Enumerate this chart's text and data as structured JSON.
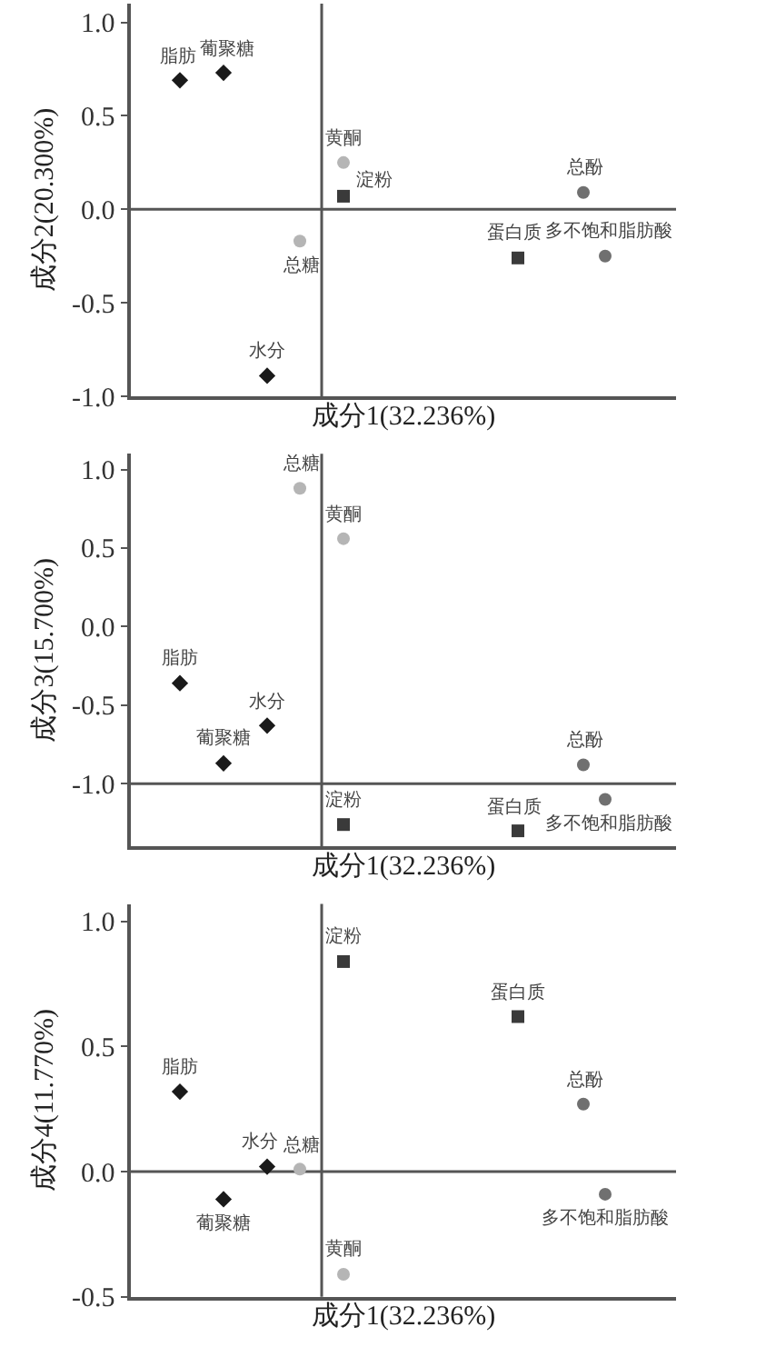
{
  "chart_data": [
    {
      "type": "scatter",
      "xlabel": "成分1(32.236%)",
      "ylabel": "成分2(20.300%)",
      "tick_labels": "y",
      "categories": [
        null,
        null,
        null,
        null,
        null,
        null,
        null,
        null,
        null,
        null,
        null,
        null,
        null,
        null,
        null,
        null,
        null,
        null,
        null,
        null,
        null,
        null,
        null,
        null,
        null,
        null,
        null,
        null,
        null,
        null,
        null,
        null,
        null,
        null,
        null,
        null,
        null,
        null,
        null,
        null,
        null,
        null,
        null,
        null,
        null,
        null,
        null,
        null,
        null,
        null
      ],
      "ylim": [
        -1.0,
        1.1
      ],
      "yticks": [
        {
          "value": 1,
          "label": "1.0"
        },
        {
          "value": 0.5,
          "label": "0.5"
        },
        {
          "value": 0,
          "label": "0.0"
        },
        {
          "value": -0.5,
          "label": "-0.5"
        },
        {
          "value": -1,
          "label": "-1.0"
        }
      ],
      "ref_lines": [
        {
          "axis": "y",
          "value": 0,
          "color": "#555555"
        }
      ],
      "series": [
        {
          "name": "脂肪",
          "color": "#1a1a1a",
          "marker": "diamond",
          "values": [
            null,
            null,
            null,
            null,
            0.69,
            null,
            null,
            null,
            null,
            null,
            null,
            null,
            null,
            null,
            null,
            null,
            null,
            null,
            null,
            null,
            null,
            null,
            null,
            null,
            null,
            null,
            null,
            null,
            null,
            null,
            null,
            null,
            null,
            null,
            null,
            null,
            null,
            null,
            null,
            null,
            null,
            null,
            null,
            null,
            null,
            null,
            null,
            null,
            null,
            null
          ]
        },
        {
          "name": "葡聚糖",
          "color": "#1a1a1a",
          "marker": "diamond",
          "values": [
            null,
            null,
            null,
            null,
            null,
            null,
            null,
            null,
            0.73,
            null,
            null,
            null,
            null,
            null,
            null,
            null,
            null,
            null,
            null,
            null,
            null,
            null,
            null,
            null,
            null,
            null,
            null,
            null,
            null,
            null,
            null,
            null,
            null,
            null,
            null,
            null,
            null,
            null,
            null,
            null,
            null,
            null,
            null,
            null,
            null,
            null,
            null,
            null,
            null,
            null
          ]
        },
        {
          "name": "水分",
          "color": "#1a1a1a",
          "marker": "diamond",
          "values": [
            null,
            null,
            null,
            null,
            null,
            null,
            null,
            null,
            null,
            null,
            null,
            null,
            -0.89,
            null,
            null,
            null,
            null,
            null,
            null,
            null,
            null,
            null,
            null,
            null,
            null,
            null,
            null,
            null,
            null,
            null,
            null,
            null,
            null,
            null,
            null,
            null,
            null,
            null,
            null,
            null,
            null,
            null,
            null,
            null,
            null,
            null,
            null,
            null,
            null,
            null
          ]
        },
        {
          "name": "黄酮",
          "color": "#b5b5b5",
          "marker": "circle",
          "values": [
            null,
            null,
            null,
            null,
            null,
            null,
            null,
            null,
            null,
            null,
            null,
            null,
            null,
            null,
            null,
            null,
            null,
            null,
            null,
            0.25,
            null,
            null,
            null,
            null,
            null,
            null,
            null,
            null,
            null,
            null,
            null,
            null,
            null,
            null,
            null,
            null,
            null,
            null,
            null,
            null,
            null,
            null,
            null,
            null,
            null,
            null,
            null,
            null,
            null,
            null
          ]
        },
        {
          "name": "总糖",
          "color": "#b5b5b5",
          "marker": "circle",
          "values": [
            null,
            null,
            null,
            null,
            null,
            null,
            null,
            null,
            null,
            null,
            null,
            null,
            null,
            null,
            null,
            -0.17,
            null,
            null,
            null,
            null,
            null,
            null,
            null,
            null,
            null,
            null,
            null,
            null,
            null,
            null,
            null,
            null,
            null,
            null,
            null,
            null,
            null,
            null,
            null,
            null,
            null,
            null,
            null,
            null,
            null,
            null,
            null,
            null,
            null,
            null
          ]
        },
        {
          "name": "淀粉",
          "color": "#3a3a3a",
          "marker": "square",
          "values": [
            null,
            null,
            null,
            null,
            null,
            null,
            null,
            null,
            null,
            null,
            null,
            null,
            null,
            null,
            null,
            null,
            null,
            null,
            null,
            0.07,
            null,
            null,
            null,
            null,
            null,
            null,
            null,
            null,
            null,
            null,
            null,
            null,
            null,
            null,
            null,
            null,
            null,
            null,
            null,
            null,
            null,
            null,
            null,
            null,
            null,
            null,
            null,
            null,
            null,
            null
          ]
        },
        {
          "name": "蛋白质",
          "color": "#3a3a3a",
          "marker": "square",
          "values": [
            null,
            null,
            null,
            null,
            null,
            null,
            null,
            null,
            null,
            null,
            null,
            null,
            null,
            null,
            null,
            null,
            null,
            null,
            null,
            null,
            null,
            null,
            null,
            null,
            null,
            null,
            null,
            null,
            null,
            null,
            null,
            null,
            null,
            null,
            null,
            -0.26,
            null,
            null,
            null,
            null,
            null,
            null,
            null,
            null,
            null,
            null,
            null,
            null,
            null,
            null
          ]
        },
        {
          "name": "总酚",
          "color": "#707070",
          "marker": "circle",
          "values": [
            null,
            null,
            null,
            null,
            null,
            null,
            null,
            null,
            null,
            null,
            null,
            null,
            null,
            null,
            null,
            null,
            null,
            null,
            null,
            null,
            null,
            null,
            null,
            null,
            null,
            null,
            null,
            null,
            null,
            null,
            null,
            null,
            null,
            null,
            null,
            null,
            null,
            null,
            null,
            null,
            null,
            0.09,
            null,
            null,
            null,
            null,
            null,
            null,
            null,
            null
          ]
        },
        {
          "name": "多不饱和脂肪酸",
          "color": "#707070",
          "marker": "circle",
          "values": [
            null,
            null,
            null,
            null,
            null,
            null,
            null,
            null,
            null,
            null,
            null,
            null,
            null,
            null,
            null,
            null,
            null,
            null,
            null,
            null,
            null,
            null,
            null,
            null,
            null,
            null,
            null,
            null,
            null,
            null,
            null,
            null,
            null,
            null,
            null,
            null,
            null,
            null,
            null,
            null,
            null,
            null,
            null,
            -0.25,
            null,
            null,
            null,
            null,
            null,
            null
          ]
        }
      ]
    },
    {
      "type": "scatter",
      "xlabel": "成分1(32.236%)",
      "ylabel": "成分3(15.700%)",
      "tick_labels": "y",
      "categories": [
        null,
        null,
        null,
        null,
        null,
        null,
        null,
        null,
        null,
        null,
        null,
        null,
        null,
        null,
        null,
        null,
        null,
        null,
        null,
        null,
        null,
        null,
        null,
        null,
        null,
        null,
        null,
        null,
        null,
        null,
        null,
        null,
        null,
        null,
        null,
        null,
        null,
        null,
        null,
        null,
        null,
        null,
        null,
        null,
        null,
        null,
        null,
        null,
        null,
        null
      ],
      "ylim": [
        -1.4,
        1.1
      ],
      "yticks": [
        {
          "value": 1,
          "label": "1.0"
        },
        {
          "value": 0.5,
          "label": "0.5"
        },
        {
          "value": 0,
          "label": "0.0"
        },
        {
          "value": -0.5,
          "label": "-0.5"
        },
        {
          "value": -1,
          "label": "-1.0"
        }
      ],
      "ref_lines": [
        {
          "axis": "y",
          "value": -1.0,
          "color": "#555555"
        }
      ],
      "series": [
        {
          "name": "脂肪",
          "color": "#1a1a1a",
          "marker": "diamond",
          "values": [
            null,
            null,
            null,
            null,
            -0.36,
            null,
            null,
            null,
            null,
            null,
            null,
            null,
            null,
            null,
            null,
            null,
            null,
            null,
            null,
            null,
            null,
            null,
            null,
            null,
            null,
            null,
            null,
            null,
            null,
            null,
            null,
            null,
            null,
            null,
            null,
            null,
            null,
            null,
            null,
            null,
            null,
            null,
            null,
            null,
            null,
            null,
            null,
            null,
            null,
            null
          ]
        },
        {
          "name": "葡聚糖",
          "color": "#1a1a1a",
          "marker": "diamond",
          "values": [
            null,
            null,
            null,
            null,
            null,
            null,
            null,
            null,
            -0.87,
            null,
            null,
            null,
            null,
            null,
            null,
            null,
            null,
            null,
            null,
            null,
            null,
            null,
            null,
            null,
            null,
            null,
            null,
            null,
            null,
            null,
            null,
            null,
            null,
            null,
            null,
            null,
            null,
            null,
            null,
            null,
            null,
            null,
            null,
            null,
            null,
            null,
            null,
            null,
            null,
            null
          ]
        },
        {
          "name": "水分",
          "color": "#1a1a1a",
          "marker": "diamond",
          "values": [
            null,
            null,
            null,
            null,
            null,
            null,
            null,
            null,
            null,
            null,
            null,
            null,
            -0.63,
            null,
            null,
            null,
            null,
            null,
            null,
            null,
            null,
            null,
            null,
            null,
            null,
            null,
            null,
            null,
            null,
            null,
            null,
            null,
            null,
            null,
            null,
            null,
            null,
            null,
            null,
            null,
            null,
            null,
            null,
            null,
            null,
            null,
            null,
            null,
            null,
            null
          ]
        },
        {
          "name": "黄酮",
          "color": "#b5b5b5",
          "marker": "circle",
          "values": [
            null,
            null,
            null,
            null,
            null,
            null,
            null,
            null,
            null,
            null,
            null,
            null,
            null,
            null,
            null,
            null,
            null,
            null,
            null,
            0.56,
            null,
            null,
            null,
            null,
            null,
            null,
            null,
            null,
            null,
            null,
            null,
            null,
            null,
            null,
            null,
            null,
            null,
            null,
            null,
            null,
            null,
            null,
            null,
            null,
            null,
            null,
            null,
            null,
            null,
            null
          ]
        },
        {
          "name": "总糖",
          "color": "#b5b5b5",
          "marker": "circle",
          "values": [
            null,
            null,
            null,
            null,
            null,
            null,
            null,
            null,
            null,
            null,
            null,
            null,
            null,
            null,
            null,
            0.88,
            null,
            null,
            null,
            null,
            null,
            null,
            null,
            null,
            null,
            null,
            null,
            null,
            null,
            null,
            null,
            null,
            null,
            null,
            null,
            null,
            null,
            null,
            null,
            null,
            null,
            null,
            null,
            null,
            null,
            null,
            null,
            null,
            null,
            null
          ]
        },
        {
          "name": "淀粉",
          "color": "#3a3a3a",
          "marker": "square",
          "values": [
            null,
            null,
            null,
            null,
            null,
            null,
            null,
            null,
            null,
            null,
            null,
            null,
            null,
            null,
            null,
            null,
            null,
            null,
            null,
            -1.26,
            null,
            null,
            null,
            null,
            null,
            null,
            null,
            null,
            null,
            null,
            null,
            null,
            null,
            null,
            null,
            null,
            null,
            null,
            null,
            null,
            null,
            null,
            null,
            null,
            null,
            null,
            null,
            null,
            null,
            null
          ]
        },
        {
          "name": "蛋白质",
          "color": "#3a3a3a",
          "marker": "square",
          "values": [
            null,
            null,
            null,
            null,
            null,
            null,
            null,
            null,
            null,
            null,
            null,
            null,
            null,
            null,
            null,
            null,
            null,
            null,
            null,
            null,
            null,
            null,
            null,
            null,
            null,
            null,
            null,
            null,
            null,
            null,
            null,
            null,
            null,
            null,
            null,
            -1.3,
            null,
            null,
            null,
            null,
            null,
            null,
            null,
            null,
            null,
            null,
            null,
            null,
            null,
            null
          ]
        },
        {
          "name": "总酚",
          "color": "#707070",
          "marker": "circle",
          "values": [
            null,
            null,
            null,
            null,
            null,
            null,
            null,
            null,
            null,
            null,
            null,
            null,
            null,
            null,
            null,
            null,
            null,
            null,
            null,
            null,
            null,
            null,
            null,
            null,
            null,
            null,
            null,
            null,
            null,
            null,
            null,
            null,
            null,
            null,
            null,
            null,
            null,
            null,
            null,
            null,
            null,
            -0.88,
            null,
            null,
            null,
            null,
            null,
            null,
            null,
            null
          ]
        },
        {
          "name": "多不饱和脂肪酸",
          "color": "#707070",
          "marker": "circle",
          "values": [
            null,
            null,
            null,
            null,
            null,
            null,
            null,
            null,
            null,
            null,
            null,
            null,
            null,
            null,
            null,
            null,
            null,
            null,
            null,
            null,
            null,
            null,
            null,
            null,
            null,
            null,
            null,
            null,
            null,
            null,
            null,
            null,
            null,
            null,
            null,
            null,
            null,
            null,
            null,
            null,
            null,
            null,
            null,
            -1.1,
            null,
            null,
            null,
            null,
            null,
            null
          ]
        }
      ]
    },
    {
      "type": "scatter",
      "xlabel": "成分1(32.236%)",
      "ylabel": "成分4(11.770%)",
      "tick_labels": "y",
      "categories": [
        null,
        null,
        null,
        null,
        null,
        null,
        null,
        null,
        null,
        null,
        null,
        null,
        null,
        null,
        null,
        null,
        null,
        null,
        null,
        null,
        null,
        null,
        null,
        null,
        null,
        null,
        null,
        null,
        null,
        null,
        null,
        null,
        null,
        null,
        null,
        null,
        null,
        null,
        null,
        null,
        null,
        null,
        null,
        null,
        null,
        null,
        null,
        null,
        null,
        null
      ],
      "ylim": [
        -0.5,
        1.07
      ],
      "yticks": [
        {
          "value": 1,
          "label": "1.0"
        },
        {
          "value": 0.5,
          "label": "0.5"
        },
        {
          "value": 0,
          "label": "0.0"
        },
        {
          "value": -0.5,
          "label": "-0.5"
        }
      ],
      "ref_lines": [
        {
          "axis": "y",
          "value": 0,
          "color": "#555555"
        }
      ],
      "series": [
        {
          "name": "脂肪",
          "color": "#1a1a1a",
          "marker": "diamond",
          "values": [
            null,
            null,
            null,
            null,
            0.32,
            null,
            null,
            null,
            null,
            null,
            null,
            null,
            null,
            null,
            null,
            null,
            null,
            null,
            null,
            null,
            null,
            null,
            null,
            null,
            null,
            null,
            null,
            null,
            null,
            null,
            null,
            null,
            null,
            null,
            null,
            null,
            null,
            null,
            null,
            null,
            null,
            null,
            null,
            null,
            null,
            null,
            null,
            null,
            null,
            null
          ]
        },
        {
          "name": "葡聚糖",
          "color": "#1a1a1a",
          "marker": "diamond",
          "values": [
            null,
            null,
            null,
            null,
            null,
            null,
            null,
            null,
            -0.11,
            null,
            null,
            null,
            null,
            null,
            null,
            null,
            null,
            null,
            null,
            null,
            null,
            null,
            null,
            null,
            null,
            null,
            null,
            null,
            null,
            null,
            null,
            null,
            null,
            null,
            null,
            null,
            null,
            null,
            null,
            null,
            null,
            null,
            null,
            null,
            null,
            null,
            null,
            null,
            null,
            null
          ]
        },
        {
          "name": "水分",
          "color": "#1a1a1a",
          "marker": "diamond",
          "values": [
            null,
            null,
            null,
            null,
            null,
            null,
            null,
            null,
            null,
            null,
            null,
            null,
            0.02,
            null,
            null,
            null,
            null,
            null,
            null,
            null,
            null,
            null,
            null,
            null,
            null,
            null,
            null,
            null,
            null,
            null,
            null,
            null,
            null,
            null,
            null,
            null,
            null,
            null,
            null,
            null,
            null,
            null,
            null,
            null,
            null,
            null,
            null,
            null,
            null,
            null
          ]
        },
        {
          "name": "黄酮",
          "color": "#b5b5b5",
          "marker": "circle",
          "values": [
            null,
            null,
            null,
            null,
            null,
            null,
            null,
            null,
            null,
            null,
            null,
            null,
            null,
            null,
            null,
            null,
            null,
            null,
            null,
            -0.41,
            null,
            null,
            null,
            null,
            null,
            null,
            null,
            null,
            null,
            null,
            null,
            null,
            null,
            null,
            null,
            null,
            null,
            null,
            null,
            null,
            null,
            null,
            null,
            null,
            null,
            null,
            null,
            null,
            null,
            null
          ]
        },
        {
          "name": "总糖",
          "color": "#b5b5b5",
          "marker": "circle",
          "values": [
            null,
            null,
            null,
            null,
            null,
            null,
            null,
            null,
            null,
            null,
            null,
            null,
            null,
            null,
            null,
            0.01,
            null,
            null,
            null,
            null,
            null,
            null,
            null,
            null,
            null,
            null,
            null,
            null,
            null,
            null,
            null,
            null,
            null,
            null,
            null,
            null,
            null,
            null,
            null,
            null,
            null,
            null,
            null,
            null,
            null,
            null,
            null,
            null,
            null,
            null
          ]
        },
        {
          "name": "淀粉",
          "color": "#3a3a3a",
          "marker": "square",
          "values": [
            null,
            null,
            null,
            null,
            null,
            null,
            null,
            null,
            null,
            null,
            null,
            null,
            null,
            null,
            null,
            null,
            null,
            null,
            null,
            0.84,
            null,
            null,
            null,
            null,
            null,
            null,
            null,
            null,
            null,
            null,
            null,
            null,
            null,
            null,
            null,
            null,
            null,
            null,
            null,
            null,
            null,
            null,
            null,
            null,
            null,
            null,
            null,
            null,
            null,
            null
          ]
        },
        {
          "name": "蛋白质",
          "color": "#3a3a3a",
          "marker": "square",
          "values": [
            null,
            null,
            null,
            null,
            null,
            null,
            null,
            null,
            null,
            null,
            null,
            null,
            null,
            null,
            null,
            null,
            null,
            null,
            null,
            null,
            null,
            null,
            null,
            null,
            null,
            null,
            null,
            null,
            null,
            null,
            null,
            null,
            null,
            null,
            null,
            0.62,
            null,
            null,
            null,
            null,
            null,
            null,
            null,
            null,
            null,
            null,
            null,
            null,
            null,
            null
          ]
        },
        {
          "name": "总酚",
          "color": "#707070",
          "marker": "circle",
          "values": [
            null,
            null,
            null,
            null,
            null,
            null,
            null,
            null,
            null,
            null,
            null,
            null,
            null,
            null,
            null,
            null,
            null,
            null,
            null,
            null,
            null,
            null,
            null,
            null,
            null,
            null,
            null,
            null,
            null,
            null,
            null,
            null,
            null,
            null,
            null,
            null,
            null,
            null,
            null,
            null,
            null,
            0.27,
            null,
            null,
            null,
            null,
            null,
            null,
            null,
            null
          ]
        },
        {
          "name": "多不饱和脂肪酸",
          "color": "#707070",
          "marker": "circle",
          "values": [
            null,
            null,
            null,
            null,
            null,
            null,
            null,
            null,
            null,
            null,
            null,
            null,
            null,
            null,
            null,
            null,
            null,
            null,
            null,
            null,
            null,
            null,
            null,
            null,
            null,
            null,
            null,
            null,
            null,
            null,
            null,
            null,
            null,
            null,
            null,
            null,
            null,
            null,
            null,
            null,
            null,
            null,
            null,
            -0.09,
            null,
            null,
            null,
            null,
            null,
            null
          ]
        }
      ]
    }
  ]
}
